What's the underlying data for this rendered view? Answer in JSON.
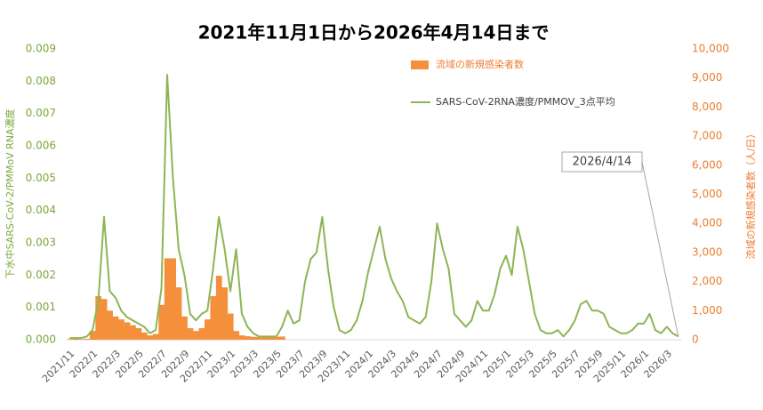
{
  "chart_data": {
    "type": "bar-line",
    "title": "2021年11月1日から2026年4月14日まで",
    "y_label": "下水中SARS-CoV-2/PMMoV RNA濃度",
    "y2_label": "流域の新規感染者数（人/日）",
    "annotation": "2026/4/14",
    "categories": [
      "2021/11",
      null,
      null,
      null,
      "2022/1",
      null,
      null,
      null,
      "2022/3",
      null,
      null,
      null,
      "2022/5",
      null,
      null,
      null,
      "2022/7",
      null,
      null,
      null,
      "2022/9",
      null,
      null,
      null,
      "2022/11",
      null,
      null,
      null,
      "2023/1",
      null,
      null,
      null,
      "2023/3",
      null,
      null,
      null,
      "2023/5",
      null,
      null,
      null,
      "2023/7",
      null,
      null,
      null,
      "2023/9",
      null,
      null,
      null,
      "2023/11",
      null,
      null,
      null,
      "2024/1",
      null,
      null,
      null,
      "2024/3",
      null,
      null,
      null,
      "2024/5",
      null,
      null,
      null,
      "2024/7",
      null,
      null,
      null,
      "2024/9",
      null,
      null,
      null,
      "2024/11",
      null,
      null,
      null,
      "2025/1",
      null,
      null,
      null,
      "2025/3",
      null,
      null,
      null,
      "2025/5",
      null,
      null,
      null,
      "2025/7",
      null,
      null,
      null,
      "2025/9",
      null,
      null,
      null,
      "2025/11",
      null,
      null,
      null,
      "2026/1",
      null,
      null,
      null,
      "2026/3",
      null,
      null
    ],
    "series": [
      {
        "name": "流域の新規感染者数",
        "kind": "bar",
        "axis": "y2",
        "color": "#f4903c",
        "values": [
          20,
          30,
          20,
          30,
          300,
          1500,
          1400,
          1000,
          800,
          700,
          600,
          500,
          400,
          250,
          150,
          200,
          1200,
          2800,
          2800,
          1800,
          800,
          400,
          300,
          400,
          700,
          1500,
          2200,
          1800,
          900,
          300,
          150,
          120,
          100,
          100,
          100,
          110,
          100,
          110,
          null,
          null,
          null,
          null,
          null,
          null,
          null,
          null,
          null,
          null,
          null,
          null,
          null,
          null,
          null,
          null,
          null,
          null,
          null,
          null,
          null,
          null,
          null,
          null,
          null,
          null,
          null,
          null,
          null,
          null,
          null,
          null,
          null,
          null,
          null,
          null,
          null,
          null,
          null,
          null,
          null,
          null,
          null,
          null,
          null,
          null,
          null,
          null,
          null,
          null,
          null,
          null,
          null,
          null,
          null,
          null,
          null,
          null,
          null,
          null,
          null,
          null,
          null,
          null,
          null,
          null,
          null,
          null,
          null
        ]
      },
      {
        "name": "SARS-CoV-2RNA濃度/PMMOV_3点平均",
        "kind": "line",
        "color": "#8db556",
        "values": [
          5e-05,
          5e-05,
          5e-05,
          0.0001,
          0.0003,
          0.0012,
          0.0038,
          0.0015,
          0.0013,
          0.0009,
          0.0007,
          0.0006,
          0.0005,
          0.0004,
          0.0002,
          0.0003,
          0.0016,
          0.0082,
          0.005,
          0.0028,
          0.002,
          0.0008,
          0.0006,
          0.0008,
          0.0009,
          0.0022,
          0.0038,
          0.0028,
          0.0015,
          0.0028,
          0.0008,
          0.0004,
          0.0002,
          0.0001,
          0.0001,
          0.0001,
          0.0001,
          0.0004,
          0.0009,
          0.0005,
          0.0006,
          0.0018,
          0.0025,
          0.0027,
          0.0038,
          0.0022,
          0.001,
          0.0003,
          0.0002,
          0.0003,
          0.0006,
          0.0012,
          0.0021,
          0.0028,
          0.0035,
          0.0025,
          0.0019,
          0.0015,
          0.0012,
          0.0007,
          0.0006,
          0.0005,
          0.0007,
          0.0018,
          0.0036,
          0.0028,
          0.0022,
          0.0008,
          0.0006,
          0.0004,
          0.0006,
          0.0012,
          0.0009,
          0.0009,
          0.0014,
          0.0022,
          0.0026,
          0.002,
          0.0035,
          0.0028,
          0.0018,
          0.0008,
          0.0003,
          0.0002,
          0.0002,
          0.0003,
          0.0001,
          0.0003,
          0.0006,
          0.0011,
          0.0012,
          0.0009,
          0.0009,
          0.0008,
          0.0004,
          0.0003,
          0.0002,
          0.0002,
          0.0003,
          0.0005,
          0.0005,
          0.0008,
          0.0003,
          0.0002,
          0.0004,
          0.0002,
          0.0001
        ]
      }
    ],
    "ylim": [
      0,
      0.009
    ],
    "yticks": [
      {
        "value": 0,
        "label": "0.000"
      },
      {
        "value": 0.001,
        "label": "0.001"
      },
      {
        "value": 0.002,
        "label": "0.002"
      },
      {
        "value": 0.003,
        "label": "0.003"
      },
      {
        "value": 0.004,
        "label": "0.004"
      },
      {
        "value": 0.005,
        "label": "0.005"
      },
      {
        "value": 0.006,
        "label": "0.006"
      },
      {
        "value": 0.007,
        "label": "0.007"
      },
      {
        "value": 0.008,
        "label": "0.008"
      },
      {
        "value": 0.009,
        "label": "0.009"
      }
    ],
    "y2lim": [
      0,
      10000
    ],
    "y2ticks": [
      0,
      {
        "value": 1000,
        "label": "1,000"
      },
      {
        "value": 2000,
        "label": "2,000"
      },
      {
        "value": 3000,
        "label": "3,000"
      },
      {
        "value": 4000,
        "label": "4,000"
      },
      {
        "value": 5000,
        "label": "5,000"
      },
      {
        "value": 6000,
        "label": "6,000"
      },
      {
        "value": 7000,
        "label": "7,000"
      },
      {
        "value": 8000,
        "label": "8,000"
      },
      {
        "value": 9000,
        "label": "9,000"
      },
      {
        "value": 10000,
        "label": "10,000"
      }
    ]
  }
}
